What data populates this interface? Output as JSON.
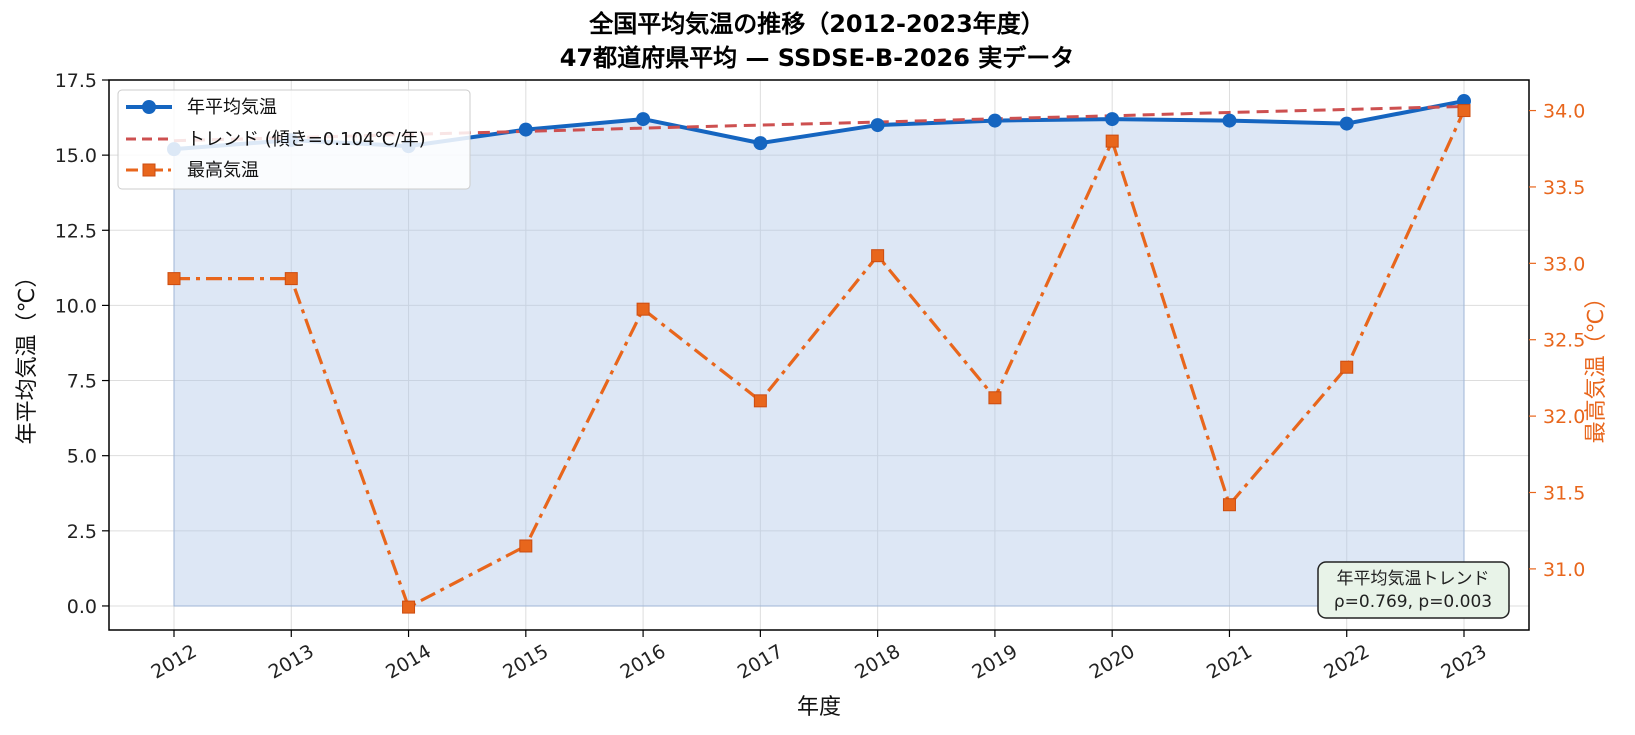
{
  "chart_data": {
    "type": "line",
    "title_line1": "全国平均気温の推移（2012-2023年度）",
    "title_line2": "47都道府県平均 — SSDSE-B-2026 実データ",
    "xlabel": "年度",
    "ylabel": "年平均気温（℃）",
    "ylabel_right": "最高気温（℃）",
    "categories": [
      "2012",
      "2013",
      "2014",
      "2015",
      "2016",
      "2017",
      "2018",
      "2019",
      "2020",
      "2021",
      "2022",
      "2023"
    ],
    "ylim": [
      -0.8,
      17.5
    ],
    "y_ticks": [
      "0.0",
      "2.5",
      "5.0",
      "7.5",
      "10.0",
      "12.5",
      "15.0",
      "17.5"
    ],
    "ylim_right": [
      30.6,
      34.2
    ],
    "y_ticks_right": [
      "31.0",
      "31.5",
      "32.0",
      "32.5",
      "33.0",
      "33.5",
      "34.0"
    ],
    "grid": true,
    "legend_position": "top-left",
    "series": [
      {
        "name": "年平均気温",
        "axis": "left",
        "color": "#1565c0",
        "fill": true,
        "values": [
          15.2,
          15.5,
          15.3,
          15.85,
          16.2,
          15.4,
          16.0,
          16.15,
          16.2,
          16.15,
          16.05,
          16.8
        ]
      },
      {
        "name": "トレンド (傾き=0.104℃/年)",
        "axis": "left",
        "color": "#cd5050",
        "style": "dashed",
        "values": [
          15.48,
          15.58,
          15.69,
          15.79,
          15.9,
          16.0,
          16.1,
          16.21,
          16.31,
          16.42,
          16.52,
          16.62
        ]
      },
      {
        "name": "最高気温",
        "axis": "right",
        "color": "#e8661c",
        "style": "dashdot",
        "values": [
          32.9,
          32.9,
          30.75,
          31.15,
          32.7,
          32.1,
          33.05,
          32.12,
          33.8,
          31.42,
          32.32,
          34.0
        ]
      }
    ],
    "annotation": {
      "line1": "年平均気温トレンド",
      "line2": "ρ=0.769, p=0.003"
    }
  }
}
